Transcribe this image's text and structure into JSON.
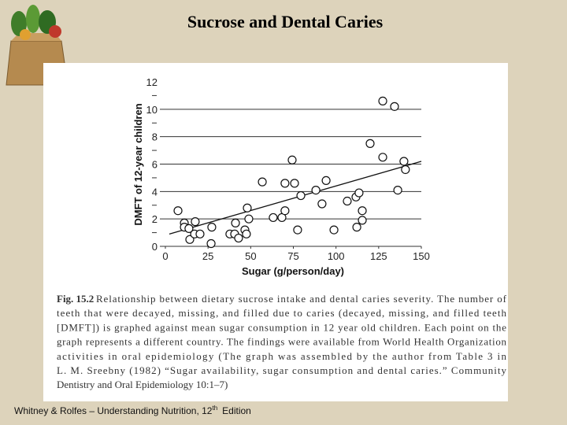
{
  "chart_data": {
    "type": "scatter",
    "title": "Sucrose and Dental Caries",
    "x_label": "Sugar (g/person/day)",
    "y_label": "DMFT of 12-year children",
    "x": [
      7.4,
      11.1,
      11.1,
      13.8,
      14.3,
      17.5,
      17.1,
      20.3,
      27.2,
      26.8,
      37.8,
      41.1,
      40.6,
      42.9,
      46.6,
      47.5,
      48.9,
      48.0,
      56.8,
      63.2,
      68.3,
      70.1,
      70.1,
      74.3,
      75.7,
      77.5,
      79.4,
      88.2,
      91.8,
      94.2,
      98.8,
      106.6,
      111.7,
      112.2,
      113.5,
      115.4,
      115.4,
      120.0,
      127.4,
      127.4,
      134.3,
      136.2,
      139.8,
      140.7
    ],
    "values": [
      2.6,
      1.7,
      1.4,
      1.3,
      0.5,
      1.8,
      0.9,
      0.9,
      1.4,
      0.2,
      0.9,
      1.7,
      0.9,
      0.6,
      1.2,
      0.9,
      2.0,
      2.8,
      4.7,
      2.1,
      2.1,
      2.6,
      4.6,
      6.3,
      4.6,
      1.2,
      3.7,
      4.1,
      3.1,
      4.8,
      1.2,
      3.3,
      3.6,
      1.4,
      3.9,
      2.6,
      1.9,
      7.5,
      10.6,
      6.5,
      10.2,
      4.1,
      6.2,
      5.6
    ],
    "trend_line": {
      "x": [
        2.3,
        150
      ],
      "values": [
        0.9,
        6.2
      ]
    },
    "xlim": [
      0,
      150
    ],
    "xticks": [
      0,
      25,
      50,
      75,
      100,
      125,
      150
    ],
    "ylim": [
      0,
      12
    ],
    "yticks": [
      0,
      2,
      4,
      6,
      8,
      10,
      12
    ],
    "yminor_ticks": [
      1,
      3,
      5,
      7,
      9,
      11
    ],
    "grid": true,
    "caption_label": "Fig. 15.2",
    "caption_lines": [
      "Relationship between dietary sucrose intake and dental caries severity. The number of",
      "teeth that were decayed, missing, and filled due to caries (decayed, missing, and filled teeth",
      "[DMFT]) is graphed against mean sugar consumption in 12 year old children. Each point on the",
      "graph represents a different country. The findings were available from World Health Organization",
      "activities in oral epidemiology (The graph was assembled by the author from Table 3 in",
      "L. M. Sreebny (1982) “Sugar availability, sugar consumption and dental caries.” Community",
      "Dentistry and Oral Epidemiology 10:1–7)"
    ],
    "footer": {
      "text": "Whitney  & Rolfes – Understanding Nutrition, 12",
      "superscript": "th",
      "tail": "Edition"
    }
  }
}
